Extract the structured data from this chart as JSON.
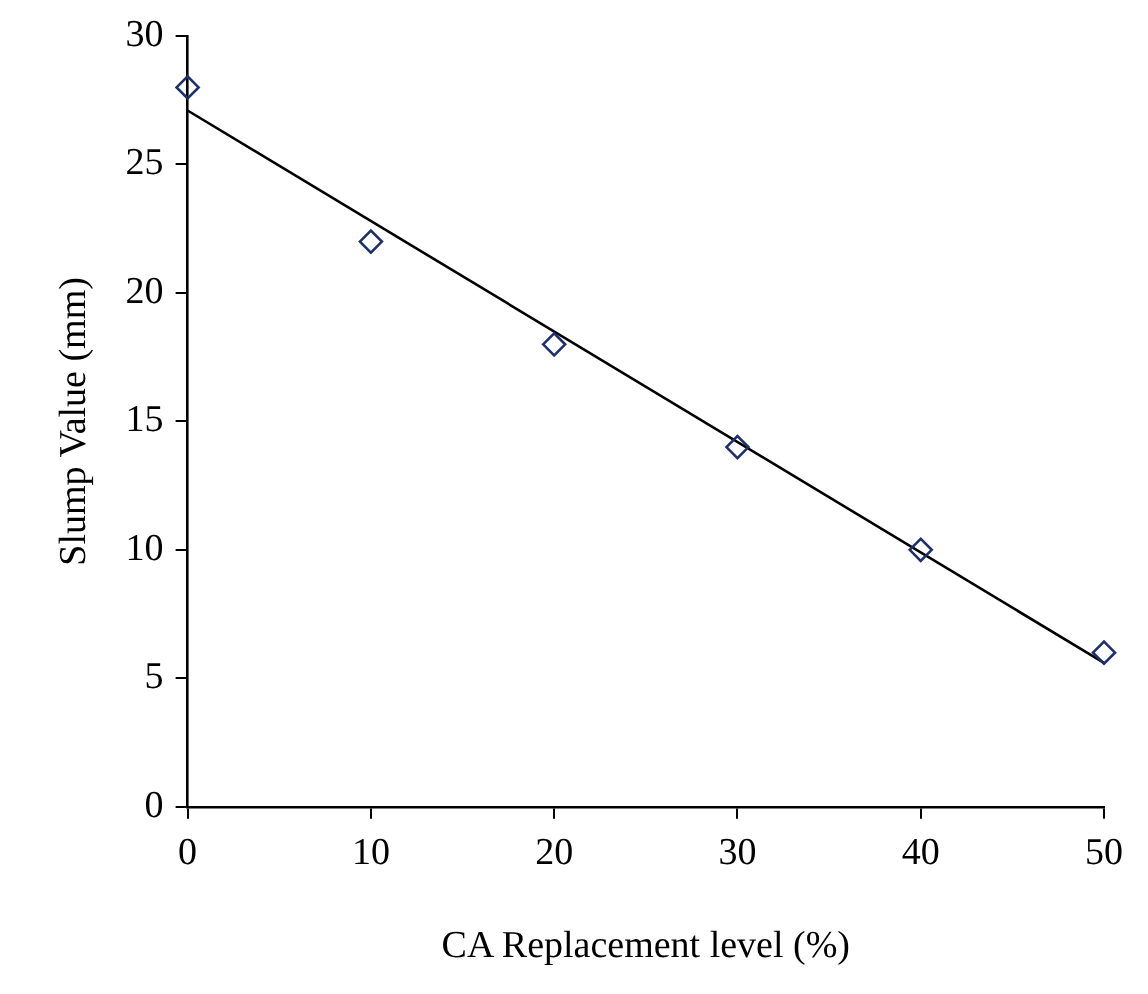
{
  "chart_data": {
    "type": "scatter",
    "xlabel": "CA Replacement level (%)",
    "ylabel": "Slump Value (mm)",
    "x": [
      0,
      10,
      20,
      30,
      40,
      50
    ],
    "series": [
      {
        "type": "scatter",
        "color": "#1f2f6e",
        "values": [
          28,
          22,
          18,
          14,
          10,
          6
        ],
        "marker": "diamond"
      },
      {
        "type": "line",
        "color": "#000000",
        "x": [
          0,
          50
        ],
        "values": [
          27.1,
          5.6
        ],
        "marker": "none",
        "line_style": "solid"
      }
    ],
    "xlim": [
      0,
      50
    ],
    "xticks": [
      0,
      10,
      20,
      30,
      40,
      50
    ],
    "ylim": [
      0,
      30
    ],
    "yticks": [
      0,
      5,
      10,
      15,
      20,
      25,
      30
    ],
    "grid": false,
    "legend": false
  }
}
